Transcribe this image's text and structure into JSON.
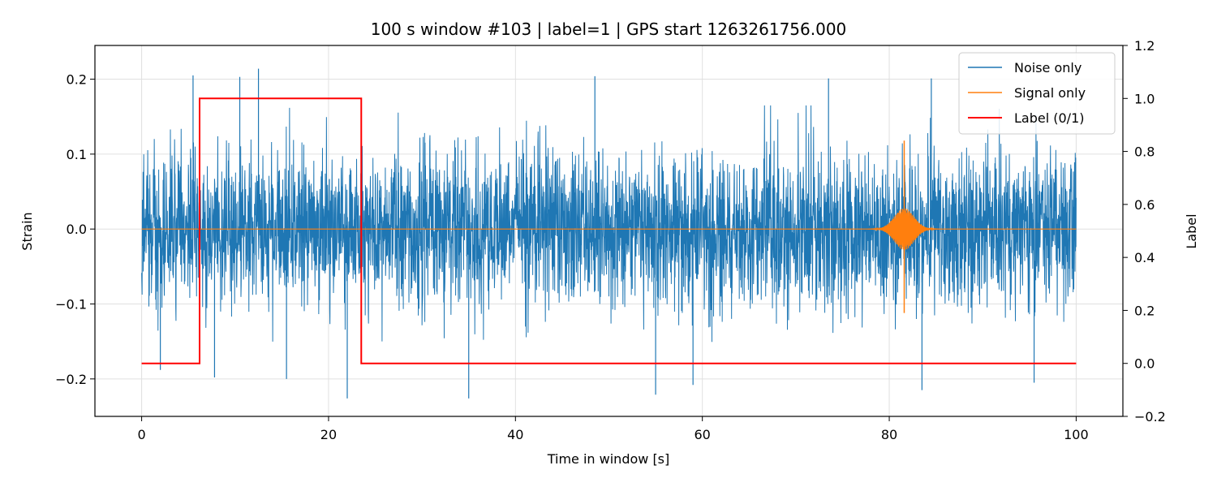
{
  "chart_data": {
    "type": "line",
    "title": "100 s window #103 | label=1 | GPS start 1263261756.000",
    "xlabel": "Time in window [s]",
    "ylabel": "Strain",
    "y2label": "Label",
    "xlim": [
      -5,
      105
    ],
    "ylim": [
      -0.25,
      0.245
    ],
    "y2lim": [
      -0.2,
      1.2
    ],
    "xticks": [
      0,
      20,
      40,
      60,
      80,
      100
    ],
    "xtick_labels": [
      "0",
      "20",
      "40",
      "60",
      "80",
      "100"
    ],
    "yticks": [
      -0.2,
      -0.1,
      0.0,
      0.1,
      0.2
    ],
    "ytick_labels": [
      "−0.2",
      "−0.1",
      "0.0",
      "0.1",
      "0.2"
    ],
    "y2ticks": [
      -0.2,
      0.0,
      0.2,
      0.4,
      0.6,
      0.8,
      1.0,
      1.2
    ],
    "y2tick_labels": [
      "−0.2",
      "0.0",
      "0.2",
      "0.4",
      "0.6",
      "0.8",
      "1.0",
      "1.2"
    ],
    "grid": true,
    "legend_position": "top-right",
    "series": [
      {
        "name": "Noise only",
        "color": "#1f77b4",
        "axis": "left",
        "x_range": [
          0,
          100
        ],
        "typical_envelope": [
          -0.12,
          0.12
        ],
        "notable_peaks": [
          {
            "x": 5.5,
            "y": 0.205
          },
          {
            "x": 10.5,
            "y": 0.203
          },
          {
            "x": 12.5,
            "y": 0.214
          },
          {
            "x": 48.5,
            "y": 0.204
          },
          {
            "x": 73.5,
            "y": 0.201
          },
          {
            "x": 84.5,
            "y": 0.201
          }
        ],
        "notable_troughs": [
          {
            "x": 2.0,
            "y": -0.188
          },
          {
            "x": 7.8,
            "y": -0.198
          },
          {
            "x": 15.5,
            "y": -0.2
          },
          {
            "x": 22.0,
            "y": -0.226
          },
          {
            "x": 35.0,
            "y": -0.226
          },
          {
            "x": 55.0,
            "y": -0.221
          },
          {
            "x": 59.0,
            "y": -0.208
          },
          {
            "x": 83.5,
            "y": -0.215
          },
          {
            "x": 95.5,
            "y": -0.205
          }
        ]
      },
      {
        "name": "Signal only",
        "color": "#ff7f0e",
        "axis": "left",
        "x_range": [
          0,
          100
        ],
        "baseline": 0.0,
        "chirp_region": [
          76,
          86
        ],
        "chirp_peak": {
          "x": 81.6,
          "max": 0.118,
          "min": -0.112
        }
      },
      {
        "name": "Label (0/1)",
        "color": "#ff0000",
        "axis": "right",
        "x": [
          0,
          6.2,
          6.2,
          23.5,
          23.5,
          100
        ],
        "values": [
          0,
          0,
          1,
          1,
          0,
          0
        ]
      }
    ]
  }
}
